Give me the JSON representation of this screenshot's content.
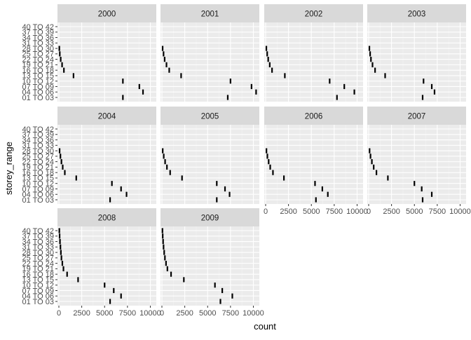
{
  "chart_data": {
    "type": "point",
    "xlabel": "count",
    "ylabel": "storey_range",
    "xlim": [
      0,
      10500
    ],
    "x_ticks": [
      0,
      2500,
      5000,
      7500,
      10000
    ],
    "x_tick_labels": [
      "0",
      "2500",
      "5000",
      "7500",
      "10000"
    ],
    "y_categories": [
      "01 TO 03",
      "04 TO 06",
      "07 TO 09",
      "10 TO 12",
      "13 TO 15",
      "16 TO 18",
      "19 TO 21",
      "22 TO 24",
      "25 TO 27",
      "28 TO 30",
      "31 TO 33",
      "34 TO 36",
      "37 TO 39",
      "40 TO 42"
    ],
    "grid": true,
    "panels": [
      {
        "title": "2000",
        "points": {
          "01 TO 03": 7000,
          "04 TO 06": 9200,
          "07 TO 09": 8800,
          "10 TO 12": 7000,
          "13 TO 15": 1600,
          "16 TO 18": 550,
          "19 TO 21": 350,
          "22 TO 24": 200,
          "25 TO 27": 100,
          "28 TO 30": 50
        }
      },
      {
        "title": "2001",
        "points": {
          "01 TO 03": 7200,
          "04 TO 06": 10300,
          "07 TO 09": 9800,
          "10 TO 12": 7500,
          "13 TO 15": 2100,
          "16 TO 18": 800,
          "19 TO 21": 500,
          "22 TO 24": 300,
          "25 TO 27": 180,
          "28 TO 30": 80
        }
      },
      {
        "title": "2002",
        "points": {
          "01 TO 03": 7800,
          "04 TO 06": 9700,
          "07 TO 09": 8600,
          "10 TO 12": 7000,
          "13 TO 15": 2100,
          "16 TO 18": 700,
          "19 TO 21": 450,
          "22 TO 24": 280,
          "25 TO 27": 170,
          "28 TO 30": 80
        }
      },
      {
        "title": "2003",
        "points": {
          "01 TO 03": 5900,
          "04 TO 06": 7200,
          "07 TO 09": 6900,
          "10 TO 12": 6000,
          "13 TO 15": 1800,
          "16 TO 18": 700,
          "19 TO 21": 420,
          "22 TO 24": 250,
          "25 TO 27": 160,
          "28 TO 30": 80
        }
      },
      {
        "title": "2004",
        "points": {
          "01 TO 03": 5600,
          "04 TO 06": 7400,
          "07 TO 09": 6800,
          "10 TO 12": 5800,
          "13 TO 15": 1900,
          "16 TO 18": 650,
          "19 TO 21": 420,
          "22 TO 24": 280,
          "25 TO 27": 170,
          "28 TO 30": 80
        }
      },
      {
        "title": "2005",
        "points": {
          "01 TO 03": 6000,
          "04 TO 06": 7400,
          "07 TO 09": 6900,
          "10 TO 12": 6000,
          "13 TO 15": 2200,
          "16 TO 18": 900,
          "19 TO 21": 550,
          "22 TO 24": 350,
          "25 TO 27": 200,
          "28 TO 30": 90
        }
      },
      {
        "title": "2006",
        "points": {
          "01 TO 03": 5500,
          "04 TO 06": 6800,
          "07 TO 09": 6200,
          "10 TO 12": 5400,
          "13 TO 15": 2000,
          "16 TO 18": 800,
          "19 TO 21": 500,
          "22 TO 24": 330,
          "25 TO 27": 190,
          "28 TO 30": 90
        }
      },
      {
        "title": "2007",
        "points": {
          "01 TO 03": 5900,
          "04 TO 06": 6900,
          "07 TO 09": 5800,
          "10 TO 12": 5000,
          "13 TO 15": 2100,
          "16 TO 18": 850,
          "19 TO 21": 550,
          "22 TO 24": 350,
          "25 TO 27": 200,
          "28 TO 30": 100
        }
      },
      {
        "title": "2008",
        "points": {
          "01 TO 03": 5600,
          "04 TO 06": 6800,
          "07 TO 09": 6000,
          "10 TO 12": 5000,
          "13 TO 15": 2100,
          "16 TO 18": 900,
          "19 TO 21": 500,
          "22 TO 24": 380,
          "25 TO 27": 280,
          "28 TO 30": 220,
          "31 TO 33": 170,
          "34 TO 36": 120,
          "37 TO 39": 80,
          "40 TO 42": 50
        }
      },
      {
        "title": "2009",
        "points": {
          "01 TO 03": 6400,
          "04 TO 06": 7700,
          "07 TO 09": 6600,
          "10 TO 12": 5800,
          "13 TO 15": 2400,
          "16 TO 18": 1000,
          "19 TO 21": 600,
          "22 TO 24": 450,
          "25 TO 27": 330,
          "28 TO 30": 250,
          "31 TO 33": 180,
          "34 TO 36": 130,
          "37 TO 39": 90,
          "40 TO 42": 60
        }
      }
    ]
  },
  "colors": {
    "panel_bg": "#ebebeb",
    "strip_bg": "#d9d9d9",
    "grid_major": "#ffffff",
    "grid_minor": "#f4f4f4",
    "point": "#000000",
    "tick_text": "#4d4d4d"
  }
}
